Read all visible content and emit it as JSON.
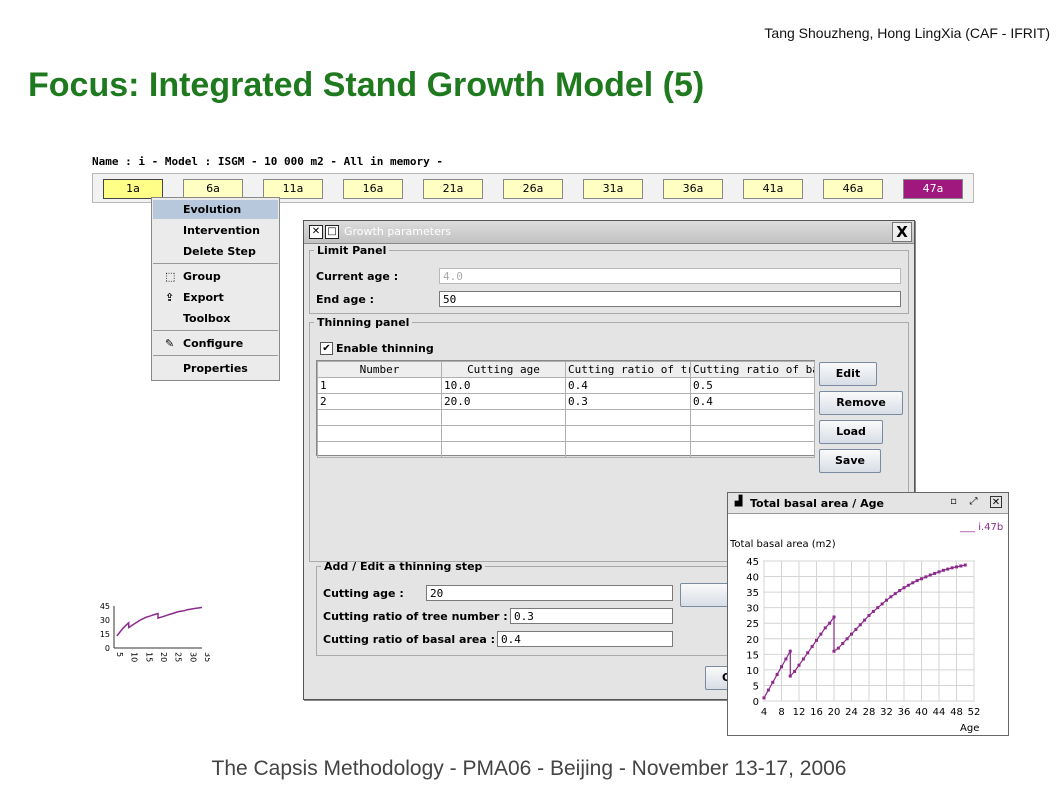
{
  "slide": {
    "authors": "Tang Shouzheng, Hong LingXia (CAF - IFRIT)",
    "title": "Focus: Integrated Stand Growth Model (5)",
    "footer": "The Capsis Methodology - PMA06 - Beijing - November 13-17, 2006"
  },
  "project": {
    "name_line": "Name : i - Model : ISGM - 10 000 m2 - All in memory -",
    "steps": [
      "1a",
      "6a",
      "11a",
      "16a",
      "21a",
      "26a",
      "31a",
      "36a",
      "41a",
      "46a",
      "47a"
    ]
  },
  "context_menu": {
    "items": [
      {
        "label": "Evolution",
        "icon": ""
      },
      {
        "label": "Intervention",
        "icon": ""
      },
      {
        "label": "Delete Step",
        "icon": ""
      },
      {
        "label": "Group",
        "icon": "group-icon"
      },
      {
        "label": "Export",
        "icon": "export-icon"
      },
      {
        "label": "Toolbox",
        "icon": ""
      },
      {
        "label": "Configure",
        "icon": "configure-icon"
      },
      {
        "label": "Properties",
        "icon": ""
      }
    ]
  },
  "growth_dialog": {
    "title": "Growth parameters",
    "limit_panel": {
      "legend": "Limit Panel",
      "current_age_label": "Current age :",
      "current_age_value": "4.0",
      "end_age_label": "End age :",
      "end_age_value": "50"
    },
    "thinning_panel": {
      "legend": "Thinning panel",
      "enable_label": "Enable thinning",
      "enabled": true,
      "columns": [
        "Number",
        "Cutting age",
        "Cutting ratio of tree...",
        "Cutting ratio of bas..."
      ],
      "rows": [
        [
          "1",
          "10.0",
          "0.4",
          "0.5"
        ],
        [
          "2",
          "20.0",
          "0.3",
          "0.4"
        ]
      ],
      "buttons": {
        "edit": "Edit",
        "remove": "Remove",
        "load": "Load",
        "save": "Save"
      }
    },
    "add_edit": {
      "legend": "Add / Edit a thinning step",
      "cutting_age_label": "Cutting age :",
      "cutting_age_value": "20",
      "ratio_tree_label": "Cutting ratio of tree number :",
      "ratio_tree_value": "0.3",
      "ratio_basal_label": "Cutting ratio of basal area :",
      "ratio_basal_value": "0.4",
      "ok_label": "O"
    }
  },
  "chart_window": {
    "title": "Total basal area / Age",
    "legend": "i.47b"
  },
  "chart_data": [
    {
      "type": "line",
      "title": "Total basal area / Age",
      "ylabel": "Total basal area (m2)",
      "xlabel": "Age",
      "xlim": [
        4,
        52
      ],
      "ylim": [
        0,
        45
      ],
      "xticks": [
        4,
        8,
        12,
        16,
        20,
        24,
        28,
        32,
        36,
        40,
        44,
        48,
        52
      ],
      "yticks": [
        0,
        5,
        10,
        15,
        20,
        25,
        30,
        35,
        40,
        45
      ],
      "grid": true,
      "legend_position": "top-right",
      "series": [
        {
          "name": "i.47b",
          "color": "#8b2a8b",
          "x": [
            4,
            5,
            6,
            7,
            8,
            9,
            10,
            10,
            11,
            12,
            13,
            14,
            15,
            16,
            17,
            18,
            19,
            20,
            20,
            21,
            22,
            23,
            24,
            25,
            26,
            27,
            28,
            29,
            30,
            31,
            32,
            33,
            34,
            35,
            36,
            37,
            38,
            39,
            40,
            41,
            42,
            43,
            44,
            45,
            46,
            47,
            48,
            49,
            50
          ],
          "y": [
            1,
            3.5,
            6,
            8.5,
            11,
            13.5,
            16,
            8,
            9.5,
            11.5,
            13.5,
            15.5,
            17.5,
            19.5,
            21.5,
            23.5,
            25,
            27,
            16,
            17,
            18.5,
            20,
            21.5,
            23,
            24.5,
            26,
            27.5,
            28.8,
            30,
            31.2,
            32.4,
            33.5,
            34.5,
            35.5,
            36.4,
            37.2,
            38,
            38.7,
            39.3,
            39.9,
            40.5,
            41,
            41.5,
            42,
            42.4,
            42.8,
            43.1,
            43.4,
            43.7
          ]
        }
      ]
    },
    {
      "type": "line",
      "title": "",
      "xlabel": "",
      "ylabel": "",
      "xlim": [
        5,
        35
      ],
      "ylim": [
        0,
        45
      ],
      "xticks": [
        5,
        10,
        15,
        20,
        25,
        30,
        35
      ],
      "yticks": [
        0,
        15,
        30,
        45
      ],
      "grid": false,
      "series": [
        {
          "color": "#8b2a8b",
          "x": [
            6,
            7,
            8,
            9,
            10,
            10,
            11,
            12,
            13,
            14,
            15,
            16,
            17,
            18,
            19,
            20,
            20,
            21,
            22,
            23,
            24,
            25,
            26,
            27,
            28,
            29,
            30,
            31,
            32,
            33,
            34,
            35
          ],
          "y": [
            13,
            17,
            21,
            24,
            27,
            22,
            24,
            26,
            28,
            30,
            31.5,
            33,
            34,
            35,
            36,
            37,
            32,
            33,
            34,
            35,
            36,
            37,
            38,
            39,
            39.5,
            40,
            41,
            41.5,
            42,
            42.5,
            43,
            43.5
          ]
        }
      ]
    }
  ]
}
